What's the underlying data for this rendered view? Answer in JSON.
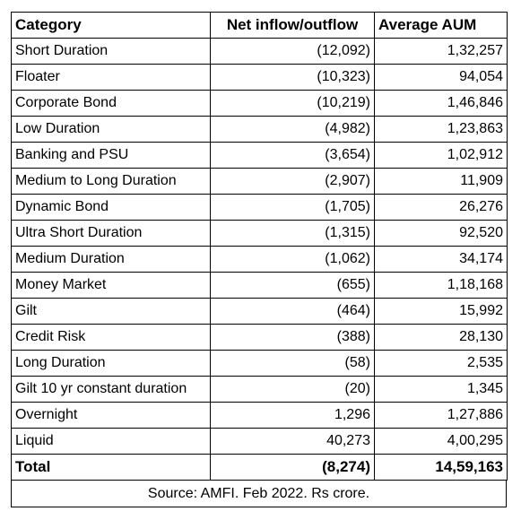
{
  "table": {
    "headers": [
      "Category",
      "Net inflow/outflow",
      "Average AUM"
    ],
    "rows": [
      {
        "category": "Short Duration",
        "net_flow": "(12,092)",
        "aum": "1,32,257"
      },
      {
        "category": "Floater",
        "net_flow": "(10,323)",
        "aum": "94,054"
      },
      {
        "category": "Corporate Bond",
        "net_flow": "(10,219)",
        "aum": "1,46,846"
      },
      {
        "category": "Low Duration",
        "net_flow": "(4,982)",
        "aum": "1,23,863"
      },
      {
        "category": "Banking and PSU",
        "net_flow": "(3,654)",
        "aum": "1,02,912"
      },
      {
        "category": "Medium to Long Duration",
        "net_flow": "(2,907)",
        "aum": "11,909"
      },
      {
        "category": "Dynamic Bond",
        "net_flow": "(1,705)",
        "aum": "26,276"
      },
      {
        "category": "Ultra Short Duration",
        "net_flow": "(1,315)",
        "aum": "92,520"
      },
      {
        "category": "Medium Duration",
        "net_flow": "(1,062)",
        "aum": "34,174"
      },
      {
        "category": "Money Market",
        "net_flow": "(655)",
        "aum": "1,18,168"
      },
      {
        "category": "Gilt",
        "net_flow": "(464)",
        "aum": "15,992"
      },
      {
        "category": "Credit Risk",
        "net_flow": "(388)",
        "aum": "28,130"
      },
      {
        "category": "Long Duration",
        "net_flow": "(58)",
        "aum": "2,535"
      },
      {
        "category": "Gilt 10 yr constant duration",
        "net_flow": "(20)",
        "aum": "1,345"
      },
      {
        "category": "Overnight",
        "net_flow": "1,296",
        "aum": "1,27,886"
      },
      {
        "category": "Liquid",
        "net_flow": "40,273",
        "aum": "4,00,295"
      }
    ],
    "total": {
      "category": "Total",
      "net_flow": "(8,274)",
      "aum": "14,59,163"
    }
  },
  "source": "Source: AMFI. Feb 2022. Rs crore."
}
